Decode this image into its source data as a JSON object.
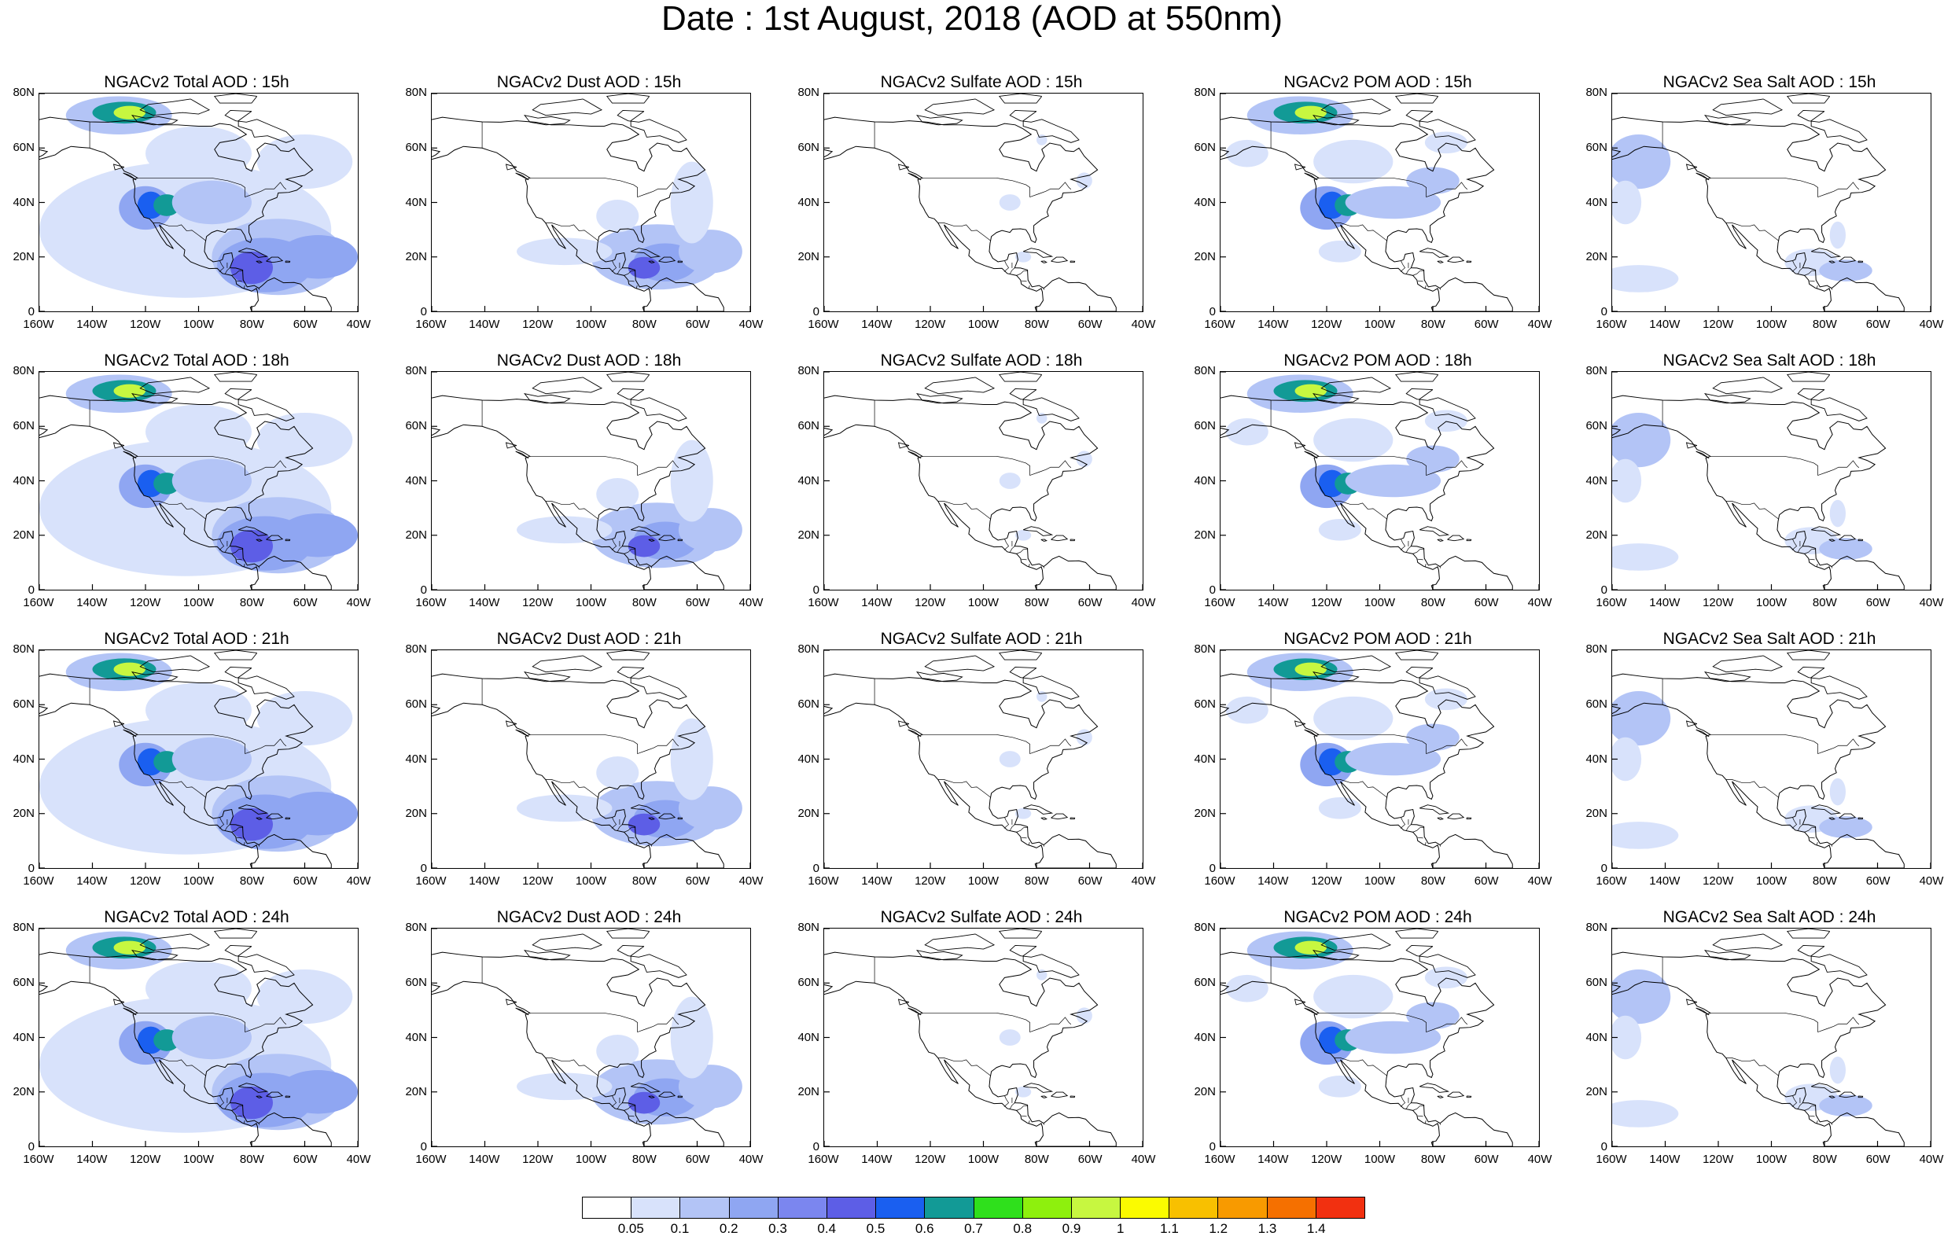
{
  "title": "Date : 1st August, 2018 (AOD at 550nm)",
  "lat_labels": [
    "80N",
    "60N",
    "40N",
    "20N",
    "0"
  ],
  "lon_labels": [
    "160W",
    "140W",
    "120W",
    "100W",
    "80W",
    "60W",
    "40W"
  ],
  "panels": [
    {
      "title": "NGACv2 Total AOD : 15h"
    },
    {
      "title": "NGACv2 Dust AOD : 15h"
    },
    {
      "title": "NGACv2 Sulfate AOD : 15h"
    },
    {
      "title": "NGACv2 POM AOD : 15h"
    },
    {
      "title": "NGACv2 Sea Salt AOD : 15h"
    },
    {
      "title": "NGACv2 Total AOD : 18h"
    },
    {
      "title": "NGACv2 Dust AOD : 18h"
    },
    {
      "title": "NGACv2 Sulfate AOD : 18h"
    },
    {
      "title": "NGACv2 POM AOD : 18h"
    },
    {
      "title": "NGACv2 Sea Salt AOD : 18h"
    },
    {
      "title": "NGACv2 Total AOD : 21h"
    },
    {
      "title": "NGACv2 Dust AOD : 21h"
    },
    {
      "title": "NGACv2 Sulfate AOD : 21h"
    },
    {
      "title": "NGACv2 POM AOD : 21h"
    },
    {
      "title": "NGACv2 Sea Salt AOD : 21h"
    },
    {
      "title": "NGACv2 Total AOD : 24h"
    },
    {
      "title": "NGACv2 Dust AOD : 24h"
    },
    {
      "title": "NGACv2 Sulfate AOD : 24h"
    },
    {
      "title": "NGACv2 POM AOD : 24h"
    },
    {
      "title": "NGACv2 Sea Salt  AOD : 24h"
    }
  ],
  "colorbar": {
    "labels": [
      "0.05",
      "0.1",
      "0.2",
      "0.3",
      "0.4",
      "0.5",
      "0.6",
      "0.7",
      "0.8",
      "0.9",
      "1",
      "1.1",
      "1.2",
      "1.3",
      "1.4"
    ],
    "colors": [
      "#ffffff",
      "#d8e2fb",
      "#b3c4f6",
      "#8fa6f2",
      "#7b86ef",
      "#5d5ee6",
      "#1a5ff0",
      "#129a96",
      "#2fe01c",
      "#8ef00d",
      "#c7f740",
      "#fbfb00",
      "#f8c000",
      "#f89a00",
      "#f57000",
      "#f23010"
    ]
  }
}
